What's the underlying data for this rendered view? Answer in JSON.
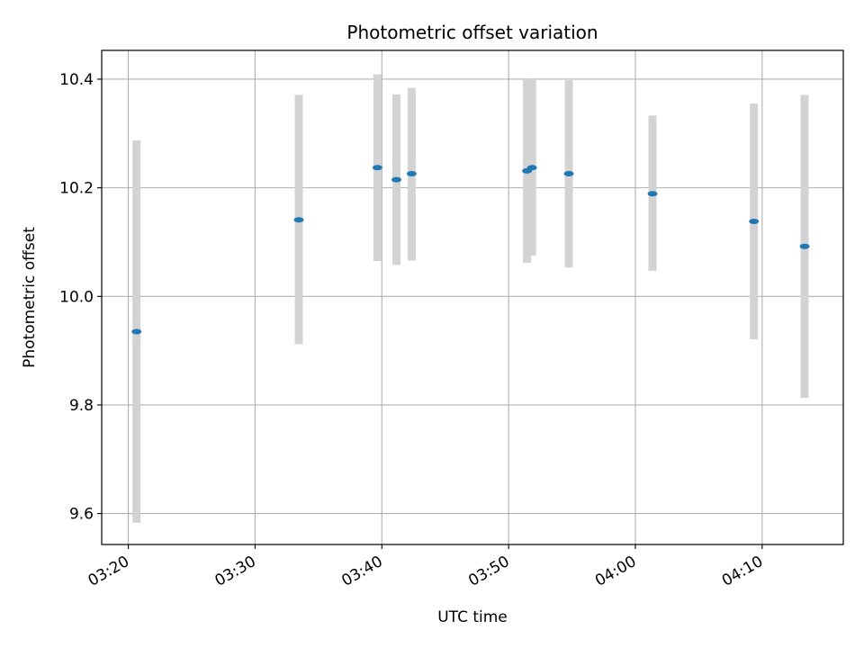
{
  "chart_data": {
    "type": "scatter",
    "title": "Photometric offset variation",
    "xlabel": "UTC time",
    "ylabel": "Photometric offset",
    "x_ticks": [
      "03:20",
      "03:30",
      "03:40",
      "03:50",
      "04:00",
      "04:10"
    ],
    "x_tick_values_min": [
      200,
      210,
      220,
      230,
      240,
      250
    ],
    "y_ticks": [
      9.6,
      9.8,
      10.0,
      10.2,
      10.4
    ],
    "xlim_min": [
      197.9,
      256.4
    ],
    "ylim": [
      9.543,
      10.453
    ],
    "grid": true,
    "colors": {
      "point": "#1f77b4",
      "errorbar": "#d3d3d3",
      "grid": "#b0b0b0"
    },
    "points": [
      {
        "x_min": 200.65,
        "y": 9.935,
        "err_low": 9.583,
        "err_high": 10.287
      },
      {
        "x_min": 213.45,
        "y": 10.141,
        "err_low": 9.912,
        "err_high": 10.371
      },
      {
        "x_min": 219.65,
        "y": 10.237,
        "err_low": 10.065,
        "err_high": 10.409
      },
      {
        "x_min": 221.15,
        "y": 10.215,
        "err_low": 10.058,
        "err_high": 10.372
      },
      {
        "x_min": 222.35,
        "y": 10.226,
        "err_low": 10.066,
        "err_high": 10.384
      },
      {
        "x_min": 231.45,
        "y": 10.231,
        "err_low": 10.062,
        "err_high": 10.4
      },
      {
        "x_min": 231.85,
        "y": 10.237,
        "err_low": 10.075,
        "err_high": 10.4
      },
      {
        "x_min": 234.75,
        "y": 10.226,
        "err_low": 10.053,
        "err_high": 10.398
      },
      {
        "x_min": 241.35,
        "y": 10.189,
        "err_low": 10.047,
        "err_high": 10.333
      },
      {
        "x_min": 249.35,
        "y": 10.138,
        "err_low": 9.921,
        "err_high": 10.355
      },
      {
        "x_min": 253.35,
        "y": 10.092,
        "err_low": 9.813,
        "err_high": 10.371
      }
    ]
  }
}
